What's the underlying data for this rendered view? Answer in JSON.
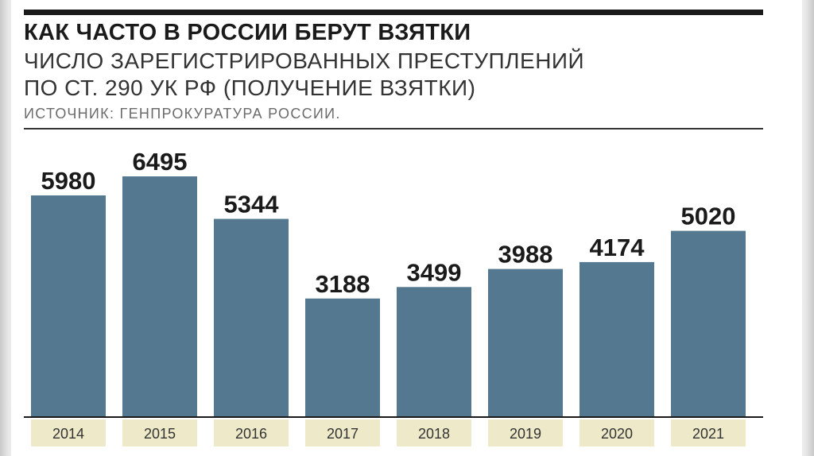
{
  "title": "КАК ЧАСТО В РОССИИ БЕРУТ ВЗЯТКИ",
  "subtitle_lines": [
    "ЧИСЛО ЗАРЕГИСТРИРОВАННЫХ ПРЕСТУПЛЕНИЙ",
    "ПО СТ. 290 УК РФ (ПОЛУЧЕНИЕ ВЗЯТКИ)"
  ],
  "source": "ИСТОЧНИК: ГЕНПРОКУРАТУРА РОССИИ.",
  "colors": {
    "bar": "#54788f",
    "tick_background": "#ede9c9",
    "text": "#1a1a1a"
  },
  "chart_data": {
    "type": "bar",
    "title": "КАК ЧАСТО В РОССИИ БЕРУТ ВЗЯТКИ",
    "categories": [
      "2014",
      "2015",
      "2016",
      "2017",
      "2018",
      "2019",
      "2020",
      "2021"
    ],
    "values": [
      5980,
      6495,
      5344,
      3188,
      3499,
      3988,
      4174,
      5020
    ],
    "data_labels": [
      "5980",
      "6495",
      "5344",
      "3188",
      "3499",
      "3988",
      "4174",
      "5020"
    ],
    "xlabel": "",
    "ylabel": "",
    "ylim": [
      0,
      6495
    ],
    "grid": false,
    "legend": "none"
  }
}
